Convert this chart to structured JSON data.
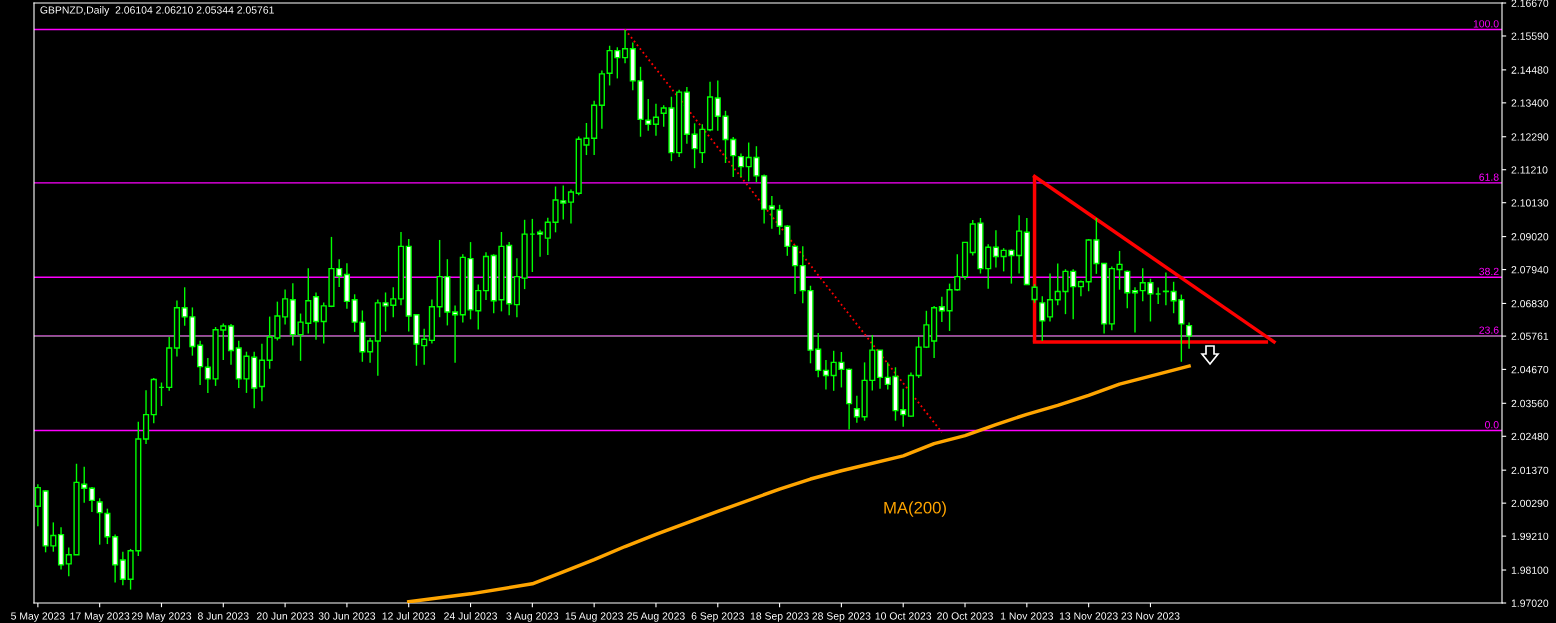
{
  "chart_data": {
    "type": "candlestick",
    "title": "GBPNZD,Daily  2.06104 2.06210 2.05344 2.05761",
    "color": "#00ff00",
    "categories": [
      "5 May 2023",
      null,
      null,
      null,
      null,
      null,
      null,
      null,
      "17 May 2023",
      null,
      null,
      null,
      null,
      null,
      null,
      null,
      "29 May 2023",
      null,
      null,
      null,
      null,
      null,
      null,
      null,
      "8 Jun 2023",
      null,
      null,
      null,
      null,
      null,
      null,
      null,
      "20 Jun 2023",
      null,
      null,
      null,
      null,
      null,
      null,
      null,
      "30 Jun 2023",
      null,
      null,
      null,
      null,
      null,
      null,
      null,
      "12 Jul 2023",
      null,
      null,
      null,
      null,
      null,
      null,
      null,
      "24 Jul 2023",
      null,
      null,
      null,
      null,
      null,
      null,
      null,
      "3 Aug 2023",
      null,
      null,
      null,
      null,
      null,
      null,
      null,
      "15 Aug 2023",
      null,
      null,
      null,
      null,
      null,
      null,
      null,
      "25 Aug 2023",
      null,
      null,
      null,
      null,
      null,
      null,
      null,
      "6 Sep 2023",
      null,
      null,
      null,
      null,
      null,
      null,
      null,
      "18 Sep 2023",
      null,
      null,
      null,
      null,
      null,
      null,
      null,
      "28 Sep 2023",
      null,
      null,
      null,
      null,
      null,
      null,
      null,
      "10 Oct 2023",
      null,
      null,
      null,
      null,
      null,
      null,
      null,
      "20 Oct 2023",
      null,
      null,
      null,
      null,
      null,
      null,
      null,
      "1 Nov 2023",
      null,
      null,
      null,
      null,
      null,
      null,
      null,
      "13 Nov 2023",
      null,
      null,
      null,
      null,
      null,
      null,
      null,
      "23 Nov 2023",
      null,
      null,
      null,
      null,
      null,
      null,
      null,
      null,
      null,
      null,
      null,
      null,
      null,
      null,
      null,
      null,
      null,
      null,
      null,
      null,
      null,
      null,
      null,
      null,
      null,
      null,
      null,
      null,
      null,
      null,
      null,
      null,
      null,
      null,
      null,
      null,
      null,
      null,
      null,
      null,
      null,
      null,
      null,
      null,
      null
    ],
    "ohlc": [
      [
        2.0019,
        2.0091,
        1.9953,
        2.008
      ],
      [
        2.0069,
        2.0071,
        1.9868,
        1.9889
      ],
      [
        1.9889,
        1.9966,
        1.987,
        1.9923
      ],
      [
        1.9926,
        1.995,
        1.9812,
        1.9827
      ],
      [
        1.983,
        1.9884,
        1.979,
        1.986
      ],
      [
        1.986,
        2.0158,
        1.986,
        2.0097
      ],
      [
        2.0091,
        2.0148,
        2.003,
        2.0078
      ],
      [
        2.0078,
        2.0082,
        2.0,
        2.0038
      ],
      [
        2.0033,
        2.0045,
        1.9893,
        1.9998
      ],
      [
        1.9995,
        2.0011,
        1.9895,
        1.9919
      ],
      [
        1.9919,
        1.9926,
        1.9769,
        1.9827
      ],
      [
        1.9843,
        1.987,
        1.976,
        1.978
      ],
      [
        1.978,
        1.9879,
        1.9746,
        1.9873
      ],
      [
        1.9873,
        2.0296,
        1.9856,
        2.0239
      ],
      [
        2.0239,
        2.0399,
        2.0223,
        2.0319
      ],
      [
        2.0319,
        2.0439,
        2.0291,
        2.0434
      ],
      [
        2.0408,
        2.0424,
        2.0347,
        2.0408
      ],
      [
        2.0408,
        2.0573,
        2.0397,
        2.0537
      ],
      [
        2.0537,
        2.0693,
        2.0509,
        2.0669
      ],
      [
        2.0669,
        2.0736,
        2.061,
        2.0639
      ],
      [
        2.0639,
        2.067,
        2.0512,
        2.0542
      ],
      [
        2.0546,
        2.0561,
        2.0416,
        2.0476
      ],
      [
        2.0474,
        2.0504,
        2.039,
        2.0436
      ],
      [
        2.0436,
        2.0606,
        2.0413,
        2.0597
      ],
      [
        2.0596,
        2.0617,
        2.0498,
        2.0609
      ],
      [
        2.0609,
        2.0616,
        2.0482,
        2.0529
      ],
      [
        2.0537,
        2.0561,
        2.0406,
        2.0436
      ],
      [
        2.0436,
        2.0525,
        2.039,
        2.051
      ],
      [
        2.0507,
        2.0525,
        2.034,
        2.0406
      ],
      [
        2.0411,
        2.0551,
        2.0363,
        2.0497
      ],
      [
        2.0497,
        2.064,
        2.0469,
        2.0573
      ],
      [
        2.057,
        2.0689,
        2.0562,
        2.0642
      ],
      [
        2.0639,
        2.0729,
        2.0614,
        2.0698
      ],
      [
        2.0695,
        2.0749,
        2.0545,
        2.0581
      ],
      [
        2.0581,
        2.065,
        2.0495,
        2.0622
      ],
      [
        2.0618,
        2.0798,
        2.0585,
        2.0692
      ],
      [
        2.0705,
        2.0719,
        2.0564,
        2.0624
      ],
      [
        2.0624,
        2.0686,
        2.0552,
        2.0675
      ],
      [
        2.0674,
        2.0901,
        2.0671,
        2.0797
      ],
      [
        2.0797,
        2.0828,
        2.0737,
        2.0773
      ],
      [
        2.0778,
        2.0815,
        2.0666,
        2.069
      ],
      [
        2.0695,
        2.0713,
        2.059,
        2.0622
      ],
      [
        2.0622,
        2.066,
        2.0492,
        2.0525
      ],
      [
        2.0525,
        2.0571,
        2.0489,
        2.056
      ],
      [
        2.056,
        2.0696,
        2.0446,
        2.0685
      ],
      [
        2.0685,
        2.0719,
        2.0591,
        2.0675
      ],
      [
        2.0677,
        2.0736,
        2.0638,
        2.0698
      ],
      [
        2.0698,
        2.0917,
        2.0677,
        2.087
      ],
      [
        2.087,
        2.0894,
        2.0591,
        2.0642
      ],
      [
        2.0646,
        2.0646,
        2.0479,
        2.055
      ],
      [
        2.0545,
        2.06,
        2.0482,
        2.0566
      ],
      [
        2.0562,
        2.0696,
        2.0552,
        2.0672
      ],
      [
        2.0672,
        2.0891,
        2.0638,
        2.0771
      ],
      [
        2.0771,
        2.0828,
        2.0611,
        2.0655
      ],
      [
        2.0655,
        2.0676,
        2.0489,
        2.0646
      ],
      [
        2.0646,
        2.0844,
        2.0621,
        2.0834
      ],
      [
        2.083,
        2.0884,
        2.0631,
        2.0662
      ],
      [
        2.0659,
        2.0745,
        2.0598,
        2.0725
      ],
      [
        2.0725,
        2.0851,
        2.0694,
        2.0837
      ],
      [
        2.084,
        2.0844,
        2.0651,
        2.0692
      ],
      [
        2.0695,
        2.0917,
        2.0657,
        2.087
      ],
      [
        2.0873,
        2.0884,
        2.0644,
        2.0682
      ],
      [
        2.0679,
        2.0831,
        2.0638,
        2.0771
      ],
      [
        2.0766,
        2.0957,
        2.073,
        2.091
      ],
      [
        2.091,
        2.096,
        2.0786,
        2.091
      ],
      [
        2.0916,
        2.0924,
        2.0836,
        2.091
      ],
      [
        2.0897,
        2.0964,
        2.0842,
        2.0949
      ],
      [
        2.0949,
        2.1066,
        2.0916,
        2.1022
      ],
      [
        2.1019,
        2.1069,
        2.0958,
        2.1012
      ],
      [
        2.1015,
        2.1056,
        2.0945,
        2.1048
      ],
      [
        2.1044,
        2.123,
        2.1037,
        2.1221
      ],
      [
        2.1202,
        2.1274,
        2.1169,
        2.1224
      ],
      [
        2.1224,
        2.1347,
        2.1169,
        2.1332
      ],
      [
        2.1332,
        2.1446,
        2.1255,
        2.1435
      ],
      [
        2.1437,
        2.1527,
        2.1397,
        2.1511
      ],
      [
        2.1511,
        2.1522,
        2.142,
        2.1488
      ],
      [
        2.1488,
        2.158,
        2.147,
        2.1517
      ],
      [
        2.1517,
        2.1538,
        2.1381,
        2.1412
      ],
      [
        2.1412,
        2.1458,
        2.1229,
        2.1286
      ],
      [
        2.1283,
        2.1353,
        2.1249,
        2.127
      ],
      [
        2.127,
        2.1337,
        2.1232,
        2.1293
      ],
      [
        2.1306,
        2.1332,
        2.1262,
        2.1323
      ],
      [
        2.1323,
        2.136,
        2.1149,
        2.1177
      ],
      [
        2.1177,
        2.1383,
        2.1163,
        2.1375
      ],
      [
        2.1375,
        2.1392,
        2.1206,
        2.1237
      ],
      [
        2.1237,
        2.1273,
        2.1126,
        2.119
      ],
      [
        2.1177,
        2.127,
        2.1143,
        2.1253
      ],
      [
        2.1252,
        2.1409,
        2.1247,
        2.1359
      ],
      [
        2.1356,
        2.1413,
        2.1249,
        2.1296
      ],
      [
        2.1296,
        2.1314,
        2.1143,
        2.122
      ],
      [
        2.122,
        2.1228,
        2.1097,
        2.1167
      ],
      [
        2.1164,
        2.1174,
        2.1097,
        2.1131
      ],
      [
        2.1131,
        2.121,
        2.1083,
        2.1161
      ],
      [
        2.1161,
        2.1198,
        2.108,
        2.1101
      ],
      [
        2.1101,
        2.1105,
        2.0945,
        2.0992
      ],
      [
        2.1002,
        2.1035,
        2.0928,
        2.0992
      ],
      [
        2.0989,
        2.1006,
        2.0908,
        2.0936
      ],
      [
        2.0936,
        2.0939,
        2.0839,
        2.087
      ],
      [
        2.087,
        2.0874,
        2.0714,
        2.0807
      ],
      [
        2.0807,
        2.087,
        2.0684,
        2.0725
      ],
      [
        2.0725,
        2.0741,
        2.0487,
        2.053
      ],
      [
        2.0533,
        2.0586,
        2.0441,
        2.0464
      ],
      [
        2.0464,
        2.0498,
        2.0401,
        2.0447
      ],
      [
        2.0447,
        2.0528,
        2.0397,
        2.049
      ],
      [
        2.049,
        2.0524,
        2.0408,
        2.0467
      ],
      [
        2.0467,
        2.047,
        2.027,
        2.0355
      ],
      [
        2.0338,
        2.0381,
        2.0292,
        2.0312
      ],
      [
        2.0312,
        2.049,
        2.0299,
        2.0431
      ],
      [
        2.0431,
        2.058,
        2.0398,
        2.053
      ],
      [
        2.053,
        2.053,
        2.0404,
        2.0441
      ],
      [
        2.0441,
        2.049,
        2.0401,
        2.0418
      ],
      [
        2.0444,
        2.0474,
        2.0299,
        2.0332
      ],
      [
        2.0335,
        2.0404,
        2.0279,
        2.0319
      ],
      [
        2.0314,
        2.0457,
        2.0312,
        2.0447
      ],
      [
        2.0447,
        2.0573,
        2.0439,
        2.054
      ],
      [
        2.054,
        2.0659,
        2.0537,
        2.0613
      ],
      [
        2.056,
        2.0675,
        2.0504,
        2.0669
      ],
      [
        2.0672,
        2.0705,
        2.0622,
        2.0659
      ],
      [
        2.0659,
        2.0748,
        2.0593,
        2.0728
      ],
      [
        2.0728,
        2.0844,
        2.0725,
        2.0771
      ],
      [
        2.0771,
        2.0883,
        2.0761,
        2.0883
      ],
      [
        2.085,
        2.0956,
        2.084,
        2.0943
      ],
      [
        2.0946,
        2.0963,
        2.0781,
        2.0797
      ],
      [
        2.0797,
        2.0877,
        2.0731,
        2.0867
      ],
      [
        2.0867,
        2.0923,
        2.0801,
        2.0837
      ],
      [
        2.0837,
        2.0864,
        2.0788,
        2.0857
      ],
      [
        2.0857,
        2.086,
        2.0748,
        2.084
      ],
      [
        2.084,
        2.0972,
        2.0781,
        2.092
      ],
      [
        2.0916,
        2.0963,
        2.0745,
        2.0745
      ],
      [
        2.0696,
        2.0746,
        2.0685,
        2.0736
      ],
      [
        2.0685,
        2.0707,
        2.056,
        2.0626
      ],
      [
        2.0639,
        2.0781,
        2.0624,
        2.0695
      ],
      [
        2.0695,
        2.0814,
        2.0677,
        2.0722
      ],
      [
        2.0722,
        2.0795,
        2.0648,
        2.0788
      ],
      [
        2.0788,
        2.0795,
        2.0631,
        2.0738
      ],
      [
        2.0738,
        2.0758,
        2.0707,
        2.0754
      ],
      [
        2.0754,
        2.0894,
        2.0723,
        2.0891
      ],
      [
        2.0891,
        2.0963,
        2.078,
        2.0814
      ],
      [
        2.0814,
        2.0814,
        2.0585,
        2.0616
      ],
      [
        2.0616,
        2.0804,
        2.0595,
        2.0797
      ],
      [
        2.0794,
        2.0855,
        2.0728,
        2.0811
      ],
      [
        2.0788,
        2.0791,
        2.0667,
        2.0718
      ],
      [
        2.0725,
        2.0736,
        2.0588,
        2.0718
      ],
      [
        2.0725,
        2.0798,
        2.069,
        2.0751
      ],
      [
        2.0751,
        2.0764,
        2.0624,
        2.0715
      ],
      [
        2.0714,
        2.0735,
        2.0681,
        2.0714
      ],
      [
        2.0723,
        2.0784,
        2.0677,
        2.0722
      ],
      [
        2.0722,
        2.0754,
        2.0651,
        2.0692
      ],
      [
        2.0695,
        2.0712,
        2.0492,
        2.0616
      ],
      [
        2.06104,
        2.0621,
        2.05344,
        2.05761
      ],
      null,
      null,
      null,
      null,
      null,
      null,
      null,
      null,
      null,
      null,
      null,
      null,
      null,
      null,
      null,
      null,
      null,
      null,
      null,
      null,
      null,
      null,
      null,
      null,
      null,
      null,
      null,
      null,
      null,
      null,
      null,
      null,
      null,
      null,
      null,
      null,
      null,
      null,
      null,
      null
    ],
    "series": [
      {
        "name": "MA(200)",
        "type": "line",
        "color": "#ffa500",
        "line_style": "solid",
        "values": [
          null,
          null,
          null,
          null,
          null,
          null,
          null,
          null,
          null,
          null,
          null,
          null,
          null,
          null,
          null,
          null,
          null,
          null,
          null,
          null,
          null,
          null,
          null,
          null,
          null,
          null,
          null,
          null,
          null,
          null,
          null,
          null,
          null,
          null,
          null,
          null,
          null,
          null,
          null,
          null,
          null,
          null,
          null,
          null,
          null,
          null,
          null,
          null,
          1.9706,
          null,
          null,
          null,
          null,
          null,
          null,
          null,
          1.9732,
          null,
          null,
          null,
          null,
          null,
          null,
          null,
          1.9765,
          null,
          null,
          null,
          1.9804,
          null,
          null,
          null,
          1.9844,
          null,
          null,
          null,
          1.9887,
          null,
          null,
          null,
          1.9927,
          null,
          null,
          null,
          null,
          null,
          null,
          null,
          2.0002,
          null,
          null,
          null,
          null,
          null,
          null,
          null,
          2.0075,
          null,
          null,
          null,
          2.0108,
          null,
          null,
          null,
          2.0135,
          null,
          null,
          null,
          null,
          null,
          null,
          null,
          2.0184,
          null,
          null,
          null,
          2.0224,
          null,
          null,
          null,
          2.025,
          null,
          null,
          null,
          2.0286,
          null,
          null,
          null,
          2.032,
          null,
          null,
          null,
          2.0349,
          null,
          null,
          null,
          2.0382,
          null,
          null,
          null,
          2.0419,
          null,
          null,
          null,
          2.0445,
          null,
          null,
          null,
          null,
          2.0478,
          null,
          null,
          null,
          null,
          null,
          null,
          null,
          null,
          null,
          null,
          null,
          null,
          null,
          null,
          null,
          null,
          null,
          null,
          null,
          null,
          null,
          null,
          null,
          null,
          null,
          null,
          null,
          null,
          null,
          null,
          null,
          null,
          null,
          null,
          null,
          null,
          null,
          null,
          null,
          null
        ]
      },
      {
        "type": "line",
        "color": "#ff0000",
        "line_style": "dotted",
        "values": [
          null,
          null,
          null,
          null,
          null,
          null,
          null,
          null,
          null,
          null,
          null,
          null,
          null,
          null,
          null,
          null,
          null,
          null,
          null,
          null,
          null,
          null,
          null,
          null,
          null,
          null,
          null,
          null,
          null,
          null,
          null,
          null,
          null,
          null,
          null,
          null,
          null,
          null,
          null,
          null,
          null,
          null,
          null,
          null,
          null,
          null,
          null,
          null,
          null,
          null,
          null,
          null,
          null,
          null,
          null,
          null,
          null,
          null,
          null,
          null,
          null,
          null,
          null,
          null,
          null,
          null,
          null,
          null,
          null,
          null,
          null,
          null,
          null,
          null,
          null,
          null,
          2.158,
          null,
          null,
          null,
          null,
          null,
          null,
          null,
          null,
          null,
          null,
          null,
          null,
          null,
          null,
          null,
          null,
          null,
          null,
          null,
          null,
          null,
          null,
          null,
          null,
          null,
          null,
          null,
          null,
          null,
          null,
          null,
          null,
          null,
          null,
          null,
          null,
          null,
          null,
          null,
          null,
          2.0261,
          null,
          null,
          null,
          null,
          null,
          null,
          null,
          null,
          null,
          null,
          null,
          null,
          null,
          null,
          null,
          null,
          null,
          null,
          null,
          null,
          null,
          null,
          null,
          null,
          null,
          null,
          null,
          null,
          null,
          null,
          null,
          null,
          null,
          null,
          null,
          null,
          null,
          null,
          null,
          null,
          null,
          null,
          null,
          null,
          null,
          null,
          null,
          null,
          null,
          null,
          null,
          null,
          null,
          null,
          null,
          null,
          null,
          null,
          null,
          null,
          null,
          null,
          null,
          null,
          null,
          null,
          null,
          null,
          null,
          null,
          null,
          null
        ]
      },
      {
        "type": "line",
        "color": "#ff0000",
        "line_style": "solid",
        "values": [
          null,
          null,
          null,
          null,
          null,
          null,
          null,
          null,
          null,
          null,
          null,
          null,
          null,
          null,
          null,
          null,
          null,
          null,
          null,
          null,
          null,
          null,
          null,
          null,
          null,
          null,
          null,
          null,
          null,
          null,
          null,
          null,
          null,
          null,
          null,
          null,
          null,
          null,
          null,
          null,
          null,
          null,
          null,
          null,
          null,
          null,
          null,
          null,
          null,
          null,
          null,
          null,
          null,
          null,
          null,
          null,
          null,
          null,
          null,
          null,
          null,
          null,
          null,
          null,
          null,
          null,
          null,
          null,
          null,
          null,
          null,
          null,
          null,
          null,
          null,
          null,
          null,
          null,
          null,
          null,
          null,
          null,
          null,
          null,
          null,
          null,
          null,
          null,
          null,
          null,
          null,
          null,
          null,
          null,
          null,
          null,
          null,
          null,
          null,
          null,
          null,
          null,
          null,
          null,
          null,
          null,
          null,
          null,
          null,
          null,
          null,
          null,
          null,
          null,
          null,
          null,
          null,
          null,
          null,
          null,
          null,
          null,
          null,
          null,
          null,
          null,
          null,
          null,
          null,
          2.1099,
          null,
          null,
          null,
          null,
          null,
          null,
          null,
          null,
          null,
          null,
          null,
          null,
          null,
          null,
          null,
          null,
          null,
          null,
          null,
          null,
          null,
          null,
          null,
          null,
          null,
          null,
          null,
          null,
          null,
          null,
          2.0557,
          null,
          null,
          null,
          null,
          null,
          null,
          null,
          null,
          null,
          null,
          null,
          null,
          null,
          null,
          null,
          null,
          null,
          null,
          null,
          null,
          null,
          null,
          null,
          null,
          null,
          null,
          null,
          null,
          null
        ]
      },
      {
        "type": "line",
        "color": "#ff0000",
        "line_style": "solid",
        "values": [
          null,
          null,
          null,
          null,
          null,
          null,
          null,
          null,
          null,
          null,
          null,
          null,
          null,
          null,
          null,
          null,
          null,
          null,
          null,
          null,
          null,
          null,
          null,
          null,
          null,
          null,
          null,
          null,
          null,
          null,
          null,
          null,
          null,
          null,
          null,
          null,
          null,
          null,
          null,
          null,
          null,
          null,
          null,
          null,
          null,
          null,
          null,
          null,
          null,
          null,
          null,
          null,
          null,
          null,
          null,
          null,
          null,
          null,
          null,
          null,
          null,
          null,
          null,
          null,
          null,
          null,
          null,
          null,
          null,
          null,
          null,
          null,
          null,
          null,
          null,
          null,
          null,
          null,
          null,
          null,
          null,
          null,
          null,
          null,
          null,
          null,
          null,
          null,
          null,
          null,
          null,
          null,
          null,
          null,
          null,
          null,
          null,
          null,
          null,
          null,
          null,
          null,
          null,
          null,
          null,
          null,
          null,
          null,
          null,
          null,
          null,
          null,
          null,
          null,
          null,
          null,
          null,
          null,
          null,
          null,
          null,
          null,
          null,
          null,
          null,
          null,
          null,
          null,
          null,
          2.0557,
          null,
          null,
          null,
          null,
          null,
          null,
          null,
          null,
          null,
          null,
          null,
          null,
          null,
          null,
          null,
          null,
          null,
          null,
          null,
          null,
          null,
          null,
          null,
          null,
          null,
          null,
          null,
          null,
          null,
          2.0557,
          null,
          null,
          null,
          null,
          null,
          null,
          null,
          null,
          null,
          null,
          null,
          null,
          null,
          null,
          null,
          null,
          null,
          null,
          null,
          null,
          null,
          null,
          null,
          null,
          null,
          null,
          null,
          null,
          null,
          null
        ],
        "errors": [
          null,
          null,
          null,
          null,
          null,
          null,
          null,
          null,
          null,
          null,
          null,
          null,
          null,
          null,
          null,
          null,
          null,
          null,
          null,
          null,
          null,
          null,
          null,
          null,
          null,
          null,
          null,
          null,
          null,
          null,
          null,
          null,
          null,
          null,
          null,
          null,
          null,
          null,
          null,
          null,
          null,
          null,
          null,
          null,
          null,
          null,
          null,
          null,
          null,
          null,
          null,
          null,
          null,
          null,
          null,
          null,
          null,
          null,
          null,
          null,
          null,
          null,
          null,
          null,
          null,
          null,
          null,
          null,
          null,
          null,
          null,
          null,
          null,
          null,
          null,
          null,
          null,
          null,
          null,
          null,
          null,
          null,
          null,
          null,
          null,
          null,
          null,
          null,
          null,
          null,
          null,
          null,
          null,
          null,
          null,
          null,
          null,
          null,
          null,
          null,
          null,
          null,
          null,
          null,
          null,
          null,
          null,
          null,
          null,
          null,
          null,
          null,
          null,
          null,
          null,
          null,
          null,
          null,
          null,
          null,
          null,
          null,
          null,
          null,
          null,
          null,
          null,
          null,
          null,
          [
            2.0557,
            2.1099
          ],
          null,
          null,
          null,
          null,
          null,
          null,
          null,
          null,
          null,
          null,
          null,
          null,
          null,
          null,
          null,
          null,
          null,
          null,
          null,
          null,
          null,
          null,
          null,
          null,
          null,
          null,
          null,
          null,
          null,
          null,
          null,
          null,
          null,
          null,
          null,
          null,
          null,
          null,
          null,
          null,
          null,
          null,
          null,
          null,
          null,
          null,
          null,
          null,
          null,
          null,
          null,
          null,
          null,
          null,
          null,
          null,
          null,
          null,
          null,
          null
        ]
      }
    ],
    "ref_lines": [
      {
        "axis": "y",
        "value": 2.158,
        "color": "#ff00ff"
      },
      {
        "axis": "y",
        "value": 2.1078,
        "color": "#ff00ff"
      },
      {
        "axis": "y",
        "value": 2.0769,
        "color": "#ff00ff"
      },
      {
        "axis": "y",
        "value": 2.0577,
        "color": "#ff00ff"
      },
      {
        "axis": "y",
        "value": 2.0267,
        "color": "#ff00ff"
      },
      {
        "axis": "y",
        "value": 2.05761,
        "color": "#808080"
      }
    ],
    "annotations": [
      {
        "text": "100.0",
        "y": 2.158
      },
      {
        "text": "61.8",
        "y": 2.1078
      },
      {
        "text": "38.2",
        "y": 2.0769
      },
      {
        "text": "23.6",
        "y": 2.0577
      },
      {
        "text": "0.0",
        "y": 2.0267
      }
    ],
    "ylim": [
      1.9702,
      2.1667
    ],
    "yticks": [
      {
        "value": 2.1667,
        "label": "2.16670"
      },
      {
        "value": 2.1559,
        "label": "2.15590"
      },
      {
        "value": 2.1448,
        "label": "2.14480"
      },
      {
        "value": 2.134,
        "label": "2.13400"
      },
      {
        "value": 2.1229,
        "label": "2.12290"
      },
      {
        "value": 2.1121,
        "label": "2.11210"
      },
      {
        "value": 2.1013,
        "label": "2.10130"
      },
      {
        "value": 2.0902,
        "label": "2.09020"
      },
      {
        "value": 2.0794,
        "label": "2.07940"
      },
      {
        "value": 2.0683,
        "label": "2.06830"
      },
      {
        "value": 2.05761,
        "label": "2.05761"
      },
      {
        "value": 2.0467,
        "label": "2.04670"
      },
      {
        "value": 2.0356,
        "label": "2.03560"
      },
      {
        "value": 2.0248,
        "label": "2.02480"
      },
      {
        "value": 2.0137,
        "label": "2.01370"
      },
      {
        "value": 2.0029,
        "label": "2.00290"
      },
      {
        "value": 1.9921,
        "label": "1.99210"
      },
      {
        "value": 1.981,
        "label": "1.98100"
      },
      {
        "value": 1.9702,
        "label": "1.97020"
      }
    ],
    "grid": false,
    "legend": false
  }
}
